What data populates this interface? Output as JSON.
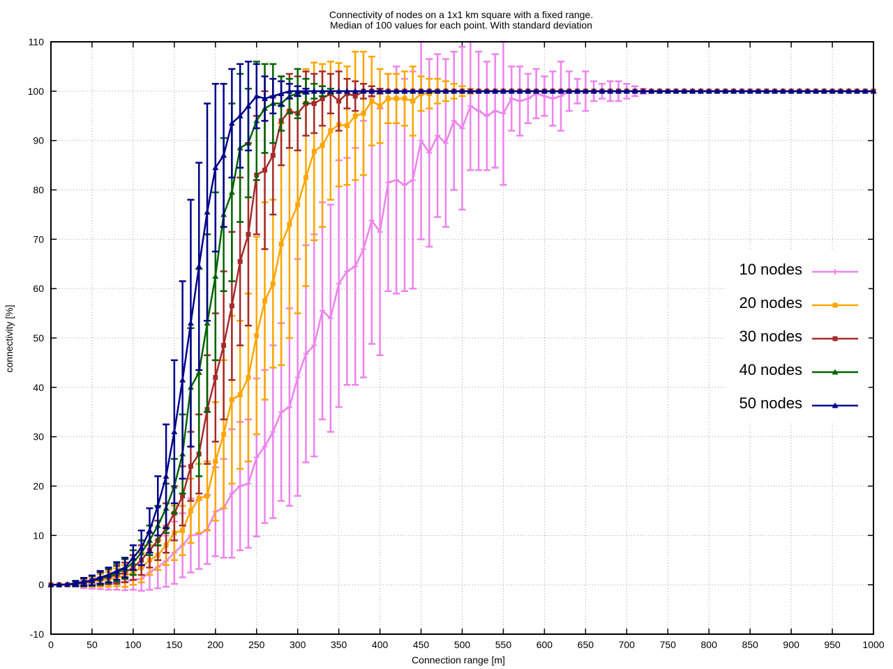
{
  "chart_data": {
    "type": "line",
    "title": "Connectivity of nodes on a 1x1 km square with a fixed range.",
    "subtitle": "Median of 100 values for each point. With standard deviation",
    "xlabel": "Connection range [m]",
    "ylabel": "connectivity [%]",
    "xlim": [
      0,
      1000
    ],
    "ylim": [
      -10,
      110
    ],
    "xticks": [
      0,
      50,
      100,
      150,
      200,
      250,
      300,
      350,
      400,
      450,
      500,
      550,
      600,
      650,
      700,
      750,
      800,
      850,
      900,
      950,
      1000
    ],
    "yticks": [
      -10,
      0,
      10,
      20,
      30,
      40,
      50,
      60,
      70,
      80,
      90,
      100,
      110
    ],
    "grid": true,
    "legend_position": "right",
    "x": [
      0,
      10,
      20,
      30,
      40,
      50,
      60,
      70,
      80,
      90,
      100,
      110,
      120,
      130,
      140,
      150,
      160,
      170,
      180,
      190,
      200,
      210,
      220,
      230,
      240,
      250,
      260,
      270,
      280,
      290,
      300,
      310,
      320,
      330,
      340,
      350,
      360,
      370,
      380,
      390,
      400,
      410,
      420,
      430,
      440,
      450,
      460,
      470,
      480,
      490,
      500,
      510,
      520,
      530,
      540,
      550,
      560,
      570,
      580,
      590,
      600,
      610,
      620,
      630,
      640,
      650,
      660,
      670,
      680,
      690,
      700,
      710,
      720,
      730,
      740,
      750,
      760,
      770,
      780,
      790,
      800,
      810,
      820,
      830,
      840,
      850,
      860,
      870,
      880,
      890,
      900,
      910,
      920,
      930,
      940,
      950,
      960,
      970,
      980,
      990,
      1000
    ],
    "series": [
      {
        "name": "10 nodes",
        "color": "#ee82ee",
        "marker": "plus",
        "values": [
          0,
          0,
          0,
          0.1,
          0.1,
          0.2,
          0.3,
          0.3,
          0.5,
          0.6,
          1.0,
          1.2,
          2.5,
          3.6,
          4.8,
          6.5,
          8.0,
          10.0,
          10.2,
          11.2,
          14.8,
          15.5,
          18.5,
          20.0,
          20.5,
          25.8,
          28.0,
          31.0,
          35.0,
          36.0,
          42.0,
          46.8,
          48.5,
          55.5,
          54.0,
          61.0,
          63.5,
          64.5,
          68.0,
          73.8,
          71.5,
          81.5,
          82.0,
          81.0,
          82.0,
          90.0,
          87.5,
          91.0,
          89.5,
          94.0,
          92.5,
          97.0,
          96.0,
          95.0,
          96.0,
          95.5,
          98.5,
          98.0,
          98.5,
          99.5,
          99.0,
          98.5,
          99.0,
          100,
          100,
          100,
          100,
          100,
          100,
          100,
          100,
          100,
          100,
          100,
          100,
          100,
          100,
          100,
          100,
          100,
          100,
          100,
          100,
          100,
          100,
          100,
          100,
          100,
          100,
          100,
          100,
          100,
          100,
          100,
          100,
          100,
          100,
          100,
          100,
          100,
          100
        ],
        "stddev": [
          0,
          0,
          0.3,
          0.5,
          0.8,
          1.0,
          1.2,
          1.3,
          1.5,
          1.7,
          2.0,
          2.4,
          3.5,
          4.3,
          5.2,
          6.3,
          6.5,
          7.5,
          7.0,
          7.0,
          9.0,
          10.0,
          13.0,
          13.0,
          13.0,
          16.0,
          15.5,
          17.5,
          18.0,
          20.0,
          24.0,
          22.0,
          22.5,
          22.0,
          23.0,
          25.0,
          23.0,
          24.0,
          26.0,
          25.0,
          25.0,
          22.0,
          23.0,
          21.5,
          22.0,
          20.0,
          19.0,
          16.5,
          17.0,
          14.0,
          16.5,
          13.0,
          12.0,
          11.0,
          11.5,
          14.5,
          6.5,
          7.0,
          5.0,
          5.0,
          4.0,
          5.5,
          7.0,
          4.0,
          2.5,
          4.0,
          2.0,
          1.5,
          2.0,
          2.0,
          1.5,
          1.0,
          0.5,
          0,
          0,
          0,
          0,
          0,
          0,
          0,
          0,
          0,
          0,
          0,
          0,
          0,
          0,
          0,
          0,
          0,
          0,
          0,
          0,
          0,
          0,
          0,
          0,
          0,
          0,
          0,
          0
        ]
      },
      {
        "name": "20 nodes",
        "color": "#ffa500",
        "marker": "square",
        "values": [
          0,
          0,
          0,
          0.2,
          0.4,
          0.6,
          0.9,
          1.1,
          1.5,
          1.8,
          2.5,
          3.5,
          5.0,
          6.0,
          8.0,
          10.5,
          11.0,
          15.0,
          17.5,
          18.0,
          25.0,
          30.5,
          37.5,
          38.5,
          42.0,
          50.5,
          57.5,
          61.0,
          69.0,
          73.0,
          77.0,
          82.5,
          87.8,
          89.0,
          92.0,
          93.2,
          93.0,
          95.0,
          95.5,
          98.0,
          97.0,
          98.5,
          98.5,
          98.5,
          98.0,
          99.5,
          99.5,
          100,
          100,
          100,
          100,
          100,
          100,
          100,
          100,
          100,
          100,
          100,
          100,
          100,
          100,
          100,
          100,
          100,
          100,
          100,
          100,
          100,
          100,
          100,
          100,
          100,
          100,
          100,
          100,
          100,
          100,
          100,
          100,
          100,
          100,
          100,
          100,
          100,
          100,
          100,
          100,
          100,
          100,
          100,
          100,
          100,
          100,
          100,
          100,
          100,
          100,
          100,
          100,
          100,
          100
        ],
        "stddev": [
          0,
          0,
          0.3,
          0.5,
          0.8,
          1.0,
          1.3,
          1.5,
          1.8,
          2.2,
          2.5,
          3.0,
          3.0,
          3.0,
          4.0,
          5.5,
          5.0,
          6.5,
          7.0,
          7.0,
          12.0,
          15.0,
          17.0,
          15.0,
          17.0,
          20.0,
          20.0,
          17.0,
          24.5,
          23.0,
          22.0,
          22.0,
          18.0,
          16.5,
          14.0,
          12.5,
          12.0,
          13.0,
          12.5,
          9.0,
          7.5,
          5.0,
          5.0,
          5.5,
          7.0,
          3.5,
          3.0,
          2.5,
          2.0,
          1.5,
          1.0,
          0.5,
          0,
          0,
          0,
          0,
          0,
          0,
          0,
          0,
          0,
          0,
          0,
          0,
          0,
          0,
          0,
          0,
          0,
          0,
          0,
          0,
          0,
          0,
          0,
          0,
          0,
          0,
          0,
          0,
          0,
          0,
          0,
          0,
          0,
          0,
          0,
          0,
          0,
          0,
          0,
          0,
          0,
          0,
          0,
          0,
          0,
          0,
          0,
          0,
          0
        ]
      },
      {
        "name": "30 nodes",
        "color": "#a52a2a",
        "marker": "square",
        "values": [
          0,
          0,
          0,
          0.2,
          0.5,
          0.8,
          1.2,
          1.6,
          2.0,
          2.5,
          3.5,
          5.0,
          7.0,
          9.0,
          11.5,
          14.5,
          18.0,
          24.0,
          26.5,
          35.5,
          42.0,
          48.5,
          56.5,
          65.5,
          71.0,
          83.0,
          84.0,
          87.0,
          94.0,
          96.0,
          95.5,
          97.5,
          97.5,
          98.5,
          99.5,
          98.0,
          99.5,
          99.0,
          100,
          100,
          100,
          100,
          100,
          100,
          100,
          100,
          100,
          100,
          100,
          100,
          100,
          100,
          100,
          100,
          100,
          100,
          100,
          100,
          100,
          100,
          100,
          100,
          100,
          100,
          100,
          100,
          100,
          100,
          100,
          100,
          100,
          100,
          100,
          100,
          100,
          100,
          100,
          100,
          100,
          100,
          100,
          100,
          100,
          100,
          100,
          100,
          100,
          100,
          100,
          100,
          100,
          100,
          100,
          100,
          100,
          100,
          100,
          100,
          100,
          100,
          100
        ],
        "stddev": [
          0,
          0,
          0.3,
          0.5,
          0.8,
          1.0,
          1.3,
          1.5,
          1.8,
          2.0,
          2.5,
          3.0,
          3.5,
          4.0,
          5.0,
          5.5,
          6.0,
          7.0,
          8.0,
          11.0,
          13.0,
          15.0,
          15.0,
          17.0,
          18.5,
          12.0,
          16.0,
          12.0,
          9.0,
          7.5,
          7.5,
          6.5,
          6.0,
          5.5,
          4.0,
          6.0,
          3.0,
          3.0,
          1.5,
          1.0,
          0.5,
          0,
          0,
          0,
          0,
          0,
          0,
          0,
          0,
          0,
          0,
          0,
          0,
          0,
          0,
          0,
          0,
          0,
          0,
          0,
          0,
          0,
          0,
          0,
          0,
          0,
          0,
          0,
          0,
          0,
          0,
          0,
          0,
          0,
          0,
          0,
          0,
          0,
          0,
          0,
          0,
          0,
          0,
          0,
          0,
          0,
          0,
          0,
          0,
          0,
          0,
          0,
          0,
          0,
          0,
          0,
          0,
          0,
          0,
          0,
          0
        ]
      },
      {
        "name": "40 nodes",
        "color": "#006400",
        "marker": "triangle",
        "values": [
          0,
          0,
          0.1,
          0.2,
          0.5,
          0.8,
          1.3,
          1.8,
          2.4,
          3.2,
          4.5,
          6.5,
          9.0,
          12.0,
          15.5,
          20.0,
          26.5,
          40.0,
          43.0,
          53.0,
          62.5,
          75.0,
          79.5,
          88.5,
          89.5,
          94.0,
          96.5,
          97.5,
          97.5,
          99.0,
          99.5,
          100,
          100,
          100,
          100,
          100,
          100,
          100,
          100,
          100,
          100,
          100,
          100,
          100,
          100,
          100,
          100,
          100,
          100,
          100,
          100,
          100,
          100,
          100,
          100,
          100,
          100,
          100,
          100,
          100,
          100,
          100,
          100,
          100,
          100,
          100,
          100,
          100,
          100,
          100,
          100,
          100,
          100,
          100,
          100,
          100,
          100,
          100,
          100,
          100,
          100,
          100,
          100,
          100,
          100,
          100,
          100,
          100,
          100,
          100,
          100,
          100,
          100,
          100,
          100,
          100,
          100,
          100,
          100,
          100,
          100
        ],
        "stddev": [
          0,
          0,
          0.3,
          0.5,
          0.8,
          1.0,
          1.3,
          1.5,
          1.8,
          2.0,
          2.5,
          2.5,
          3.0,
          4.0,
          5.0,
          5.5,
          8.0,
          12.0,
          21.0,
          18.0,
          17.0,
          15.5,
          18.0,
          15.0,
          11.0,
          12.0,
          9.0,
          8.0,
          5.5,
          3.5,
          5.0,
          2.5,
          1.5,
          1.0,
          0.5,
          0,
          0,
          0,
          0,
          0,
          0,
          0,
          0,
          0,
          0,
          0,
          0,
          0,
          0,
          0,
          0,
          0,
          0,
          0,
          0,
          0,
          0,
          0,
          0,
          0,
          0,
          0,
          0,
          0,
          0,
          0,
          0,
          0,
          0,
          0,
          0,
          0,
          0,
          0,
          0,
          0,
          0,
          0,
          0,
          0,
          0,
          0,
          0,
          0,
          0,
          0,
          0,
          0,
          0,
          0,
          0,
          0,
          0,
          0,
          0,
          0,
          0,
          0,
          0,
          0,
          0
        ]
      },
      {
        "name": "50 nodes",
        "color": "#00008b",
        "marker": "triangle",
        "values": [
          0,
          0,
          0.1,
          0.3,
          0.6,
          0.9,
          1.5,
          2.0,
          2.8,
          3.5,
          5.5,
          7.5,
          11.0,
          16.0,
          22.0,
          31.0,
          41.5,
          53.0,
          64.5,
          75.5,
          84.5,
          87.0,
          93.5,
          95.0,
          97.0,
          99.0,
          98.5,
          99.0,
          99.5,
          100,
          100,
          100,
          100,
          100,
          100,
          100,
          100,
          100,
          100,
          100,
          100,
          100,
          100,
          100,
          100,
          100,
          100,
          100,
          100,
          100,
          100,
          100,
          100,
          100,
          100,
          100,
          100,
          100,
          100,
          100,
          100,
          100,
          100,
          100,
          100,
          100,
          100,
          100,
          100,
          100,
          100,
          100,
          100,
          100,
          100,
          100,
          100,
          100,
          100,
          100,
          100,
          100,
          100,
          100,
          100,
          100,
          100,
          100,
          100,
          100,
          100,
          100,
          100,
          100,
          100,
          100,
          100,
          100,
          100,
          100,
          100
        ],
        "stddev": [
          0,
          0,
          0.3,
          0.5,
          0.8,
          1.0,
          1.3,
          1.5,
          1.8,
          2.0,
          2.5,
          3.5,
          4.5,
          6.0,
          10.5,
          14.5,
          20.0,
          25.0,
          21.0,
          22.0,
          17.0,
          14.5,
          11.0,
          10.5,
          9.0,
          6.5,
          4.5,
          3.5,
          2.5,
          1.5,
          1.0,
          0.5,
          0,
          0,
          0,
          0,
          0,
          0,
          0,
          0,
          0,
          0,
          0,
          0,
          0,
          0,
          0,
          0,
          0,
          0,
          0,
          0,
          0,
          0,
          0,
          0,
          0,
          0,
          0,
          0,
          0,
          0,
          0,
          0,
          0,
          0,
          0,
          0,
          0,
          0,
          0,
          0,
          0,
          0,
          0,
          0,
          0,
          0,
          0,
          0,
          0,
          0,
          0,
          0,
          0,
          0,
          0,
          0,
          0,
          0,
          0,
          0,
          0,
          0,
          0,
          0,
          0,
          0,
          0,
          0,
          0
        ]
      }
    ]
  }
}
